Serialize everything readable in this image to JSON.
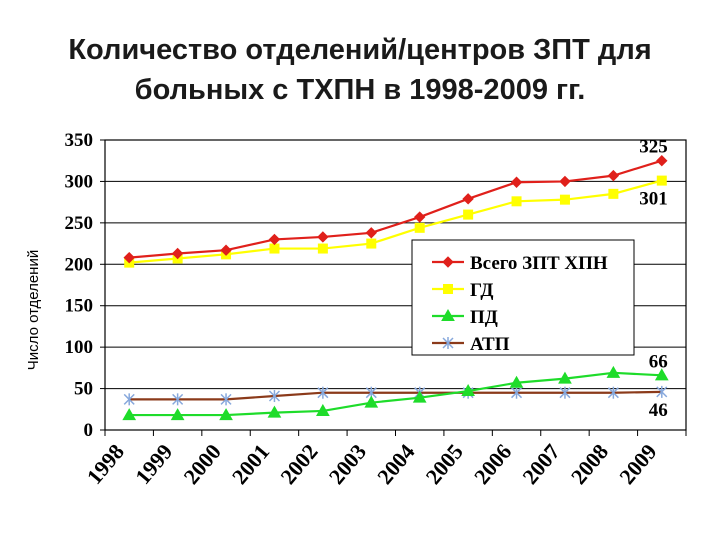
{
  "title_line1": "Количество отделений/центров ЗПТ для",
  "title_line2": "больных с ТХПН в 1998-2009 гг.",
  "chart_data": {
    "type": "line",
    "title": "Количество отделений/центров ЗПТ для больных с ТХПН в 1998-2009 гг.",
    "ylabel": "Число отделений",
    "xlabel": "",
    "ylim": [
      0,
      350
    ],
    "yticks": [
      "0",
      "50",
      "100",
      "150",
      "200",
      "250",
      "300",
      "350"
    ],
    "categories": [
      "1998",
      "1999",
      "2000",
      "2001",
      "2002",
      "2003",
      "2004",
      "2005",
      "2006",
      "2007",
      "2008",
      "2009"
    ],
    "grid": "horizontal",
    "legend_position": "center-right",
    "series": [
      {
        "name": "Всего ЗПТ ХПН",
        "color": "#e0201b",
        "marker": "diamond",
        "values": [
          208,
          213,
          217,
          230,
          233,
          238,
          257,
          279,
          299,
          300,
          307,
          325
        ]
      },
      {
        "name": "ГД",
        "color": "#ffff00",
        "marker": "square",
        "values": [
          202,
          207,
          212,
          219,
          219,
          225,
          244,
          260,
          276,
          278,
          285,
          301
        ]
      },
      {
        "name": "ПД",
        "color": "#1edc2a",
        "marker": "triangle",
        "values": [
          18,
          18,
          18,
          21,
          23,
          33,
          39,
          47,
          57,
          62,
          69,
          66
        ]
      },
      {
        "name": "АТП",
        "color": "#8b3a1a",
        "marker": "star",
        "values": [
          37,
          37,
          37,
          41,
          45,
          45,
          45,
          45,
          45,
          45,
          45,
          46
        ]
      }
    ],
    "annotations": [
      {
        "text": "325",
        "series": 0,
        "index": 11,
        "position": "above"
      },
      {
        "text": "301",
        "series": 1,
        "index": 11,
        "position": "below"
      },
      {
        "text": "66",
        "series": 2,
        "index": 11,
        "position": "above"
      },
      {
        "text": "46",
        "series": 3,
        "index": 11,
        "position": "below"
      }
    ]
  }
}
